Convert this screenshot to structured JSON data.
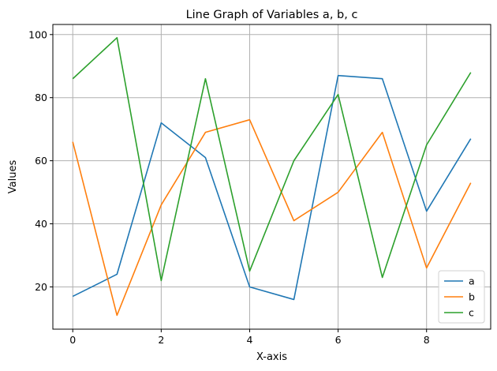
{
  "chart_data": {
    "type": "line",
    "title": "Line Graph of Variables a, b, c",
    "xlabel": "X-axis",
    "ylabel": "Values",
    "x": [
      0,
      1,
      2,
      3,
      4,
      5,
      6,
      7,
      8,
      9
    ],
    "xlim": [
      -0.45,
      9.45
    ],
    "ylim": [
      6.6,
      103.2
    ],
    "xticks": [
      0,
      2,
      4,
      6,
      8
    ],
    "yticks": [
      20,
      40,
      60,
      80,
      100
    ],
    "grid": true,
    "legend_position": "lower-right",
    "series": [
      {
        "name": "a",
        "color": "#1f77b4",
        "values": [
          17,
          24,
          72,
          61,
          20,
          16,
          87,
          86,
          44,
          67
        ]
      },
      {
        "name": "b",
        "color": "#ff7f0e",
        "values": [
          66,
          11,
          46,
          69,
          73,
          41,
          50,
          69,
          26,
          53
        ]
      },
      {
        "name": "c",
        "color": "#2ca02c",
        "values": [
          86,
          99,
          22,
          86,
          25,
          60,
          81,
          23,
          65,
          88
        ]
      }
    ]
  }
}
